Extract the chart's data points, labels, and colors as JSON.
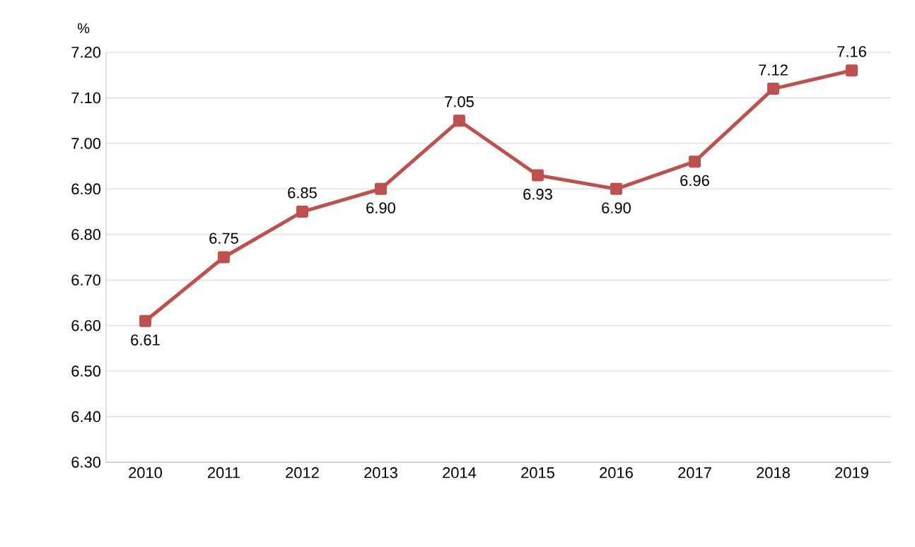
{
  "chart_data": {
    "type": "line",
    "ylabel": "%",
    "categories": [
      "2010",
      "2011",
      "2012",
      "2013",
      "2014",
      "2015",
      "2016",
      "2017",
      "2018",
      "2019"
    ],
    "series": [
      {
        "color": "#c0504d",
        "values": [
          6.61,
          6.75,
          6.85,
          6.9,
          7.05,
          6.93,
          6.9,
          6.96,
          7.12,
          7.16
        ],
        "value_labels": [
          "6.61",
          "6.75",
          "6.85",
          "6.90",
          "7.05",
          "6.93",
          "6.90",
          "6.96",
          "7.12",
          "7.16"
        ]
      }
    ],
    "ylim": [
      6.3,
      7.2
    ],
    "yticks": [
      {
        "value": 6.3,
        "label": "6.30"
      },
      {
        "value": 6.4,
        "label": "6.40"
      },
      {
        "value": 6.5,
        "label": "6.50"
      },
      {
        "value": 6.6,
        "label": "6.60"
      },
      {
        "value": 6.7,
        "label": "6.70"
      },
      {
        "value": 6.8,
        "label": "6.80"
      },
      {
        "value": 6.9,
        "label": "6.90"
      },
      {
        "value": 7.0,
        "label": "7.00"
      },
      {
        "value": 7.1,
        "label": "7.10"
      },
      {
        "value": 7.2,
        "label": "7.20"
      }
    ],
    "grid": "y",
    "marker": "square",
    "line_style": "solid"
  }
}
